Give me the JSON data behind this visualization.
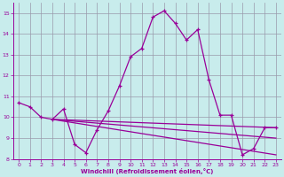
{
  "xlabel": "Windchill (Refroidissement éolien,°C)",
  "bg_color": "#c8ecec",
  "line_color": "#990099",
  "grid_color": "#9999aa",
  "ylim": [
    8,
    15.5
  ],
  "xlim": [
    -0.5,
    23.5
  ],
  "xticks": [
    0,
    1,
    2,
    3,
    4,
    5,
    6,
    7,
    8,
    9,
    10,
    11,
    12,
    13,
    14,
    15,
    16,
    17,
    18,
    19,
    20,
    21,
    22,
    23
  ],
  "yticks": [
    8,
    9,
    10,
    11,
    12,
    13,
    14,
    15
  ],
  "main_series_x": [
    0,
    1,
    2,
    3,
    4,
    5,
    6,
    7,
    8,
    9,
    10,
    11,
    12,
    13,
    14,
    15,
    16,
    17,
    18,
    19,
    20,
    21,
    22,
    23
  ],
  "main_series_y": [
    10.7,
    10.5,
    10.0,
    9.9,
    10.4,
    8.7,
    8.3,
    9.4,
    10.3,
    11.5,
    12.9,
    13.3,
    14.8,
    15.1,
    14.5,
    13.7,
    14.2,
    11.8,
    10.1,
    10.1,
    8.2,
    8.5,
    9.5,
    9.5
  ],
  "flat_lines": [
    {
      "x": [
        3,
        23
      ],
      "y": [
        9.9,
        9.5
      ]
    },
    {
      "x": [
        3,
        23
      ],
      "y": [
        9.9,
        9.0
      ]
    },
    {
      "x": [
        3,
        23
      ],
      "y": [
        9.9,
        8.2
      ]
    }
  ]
}
